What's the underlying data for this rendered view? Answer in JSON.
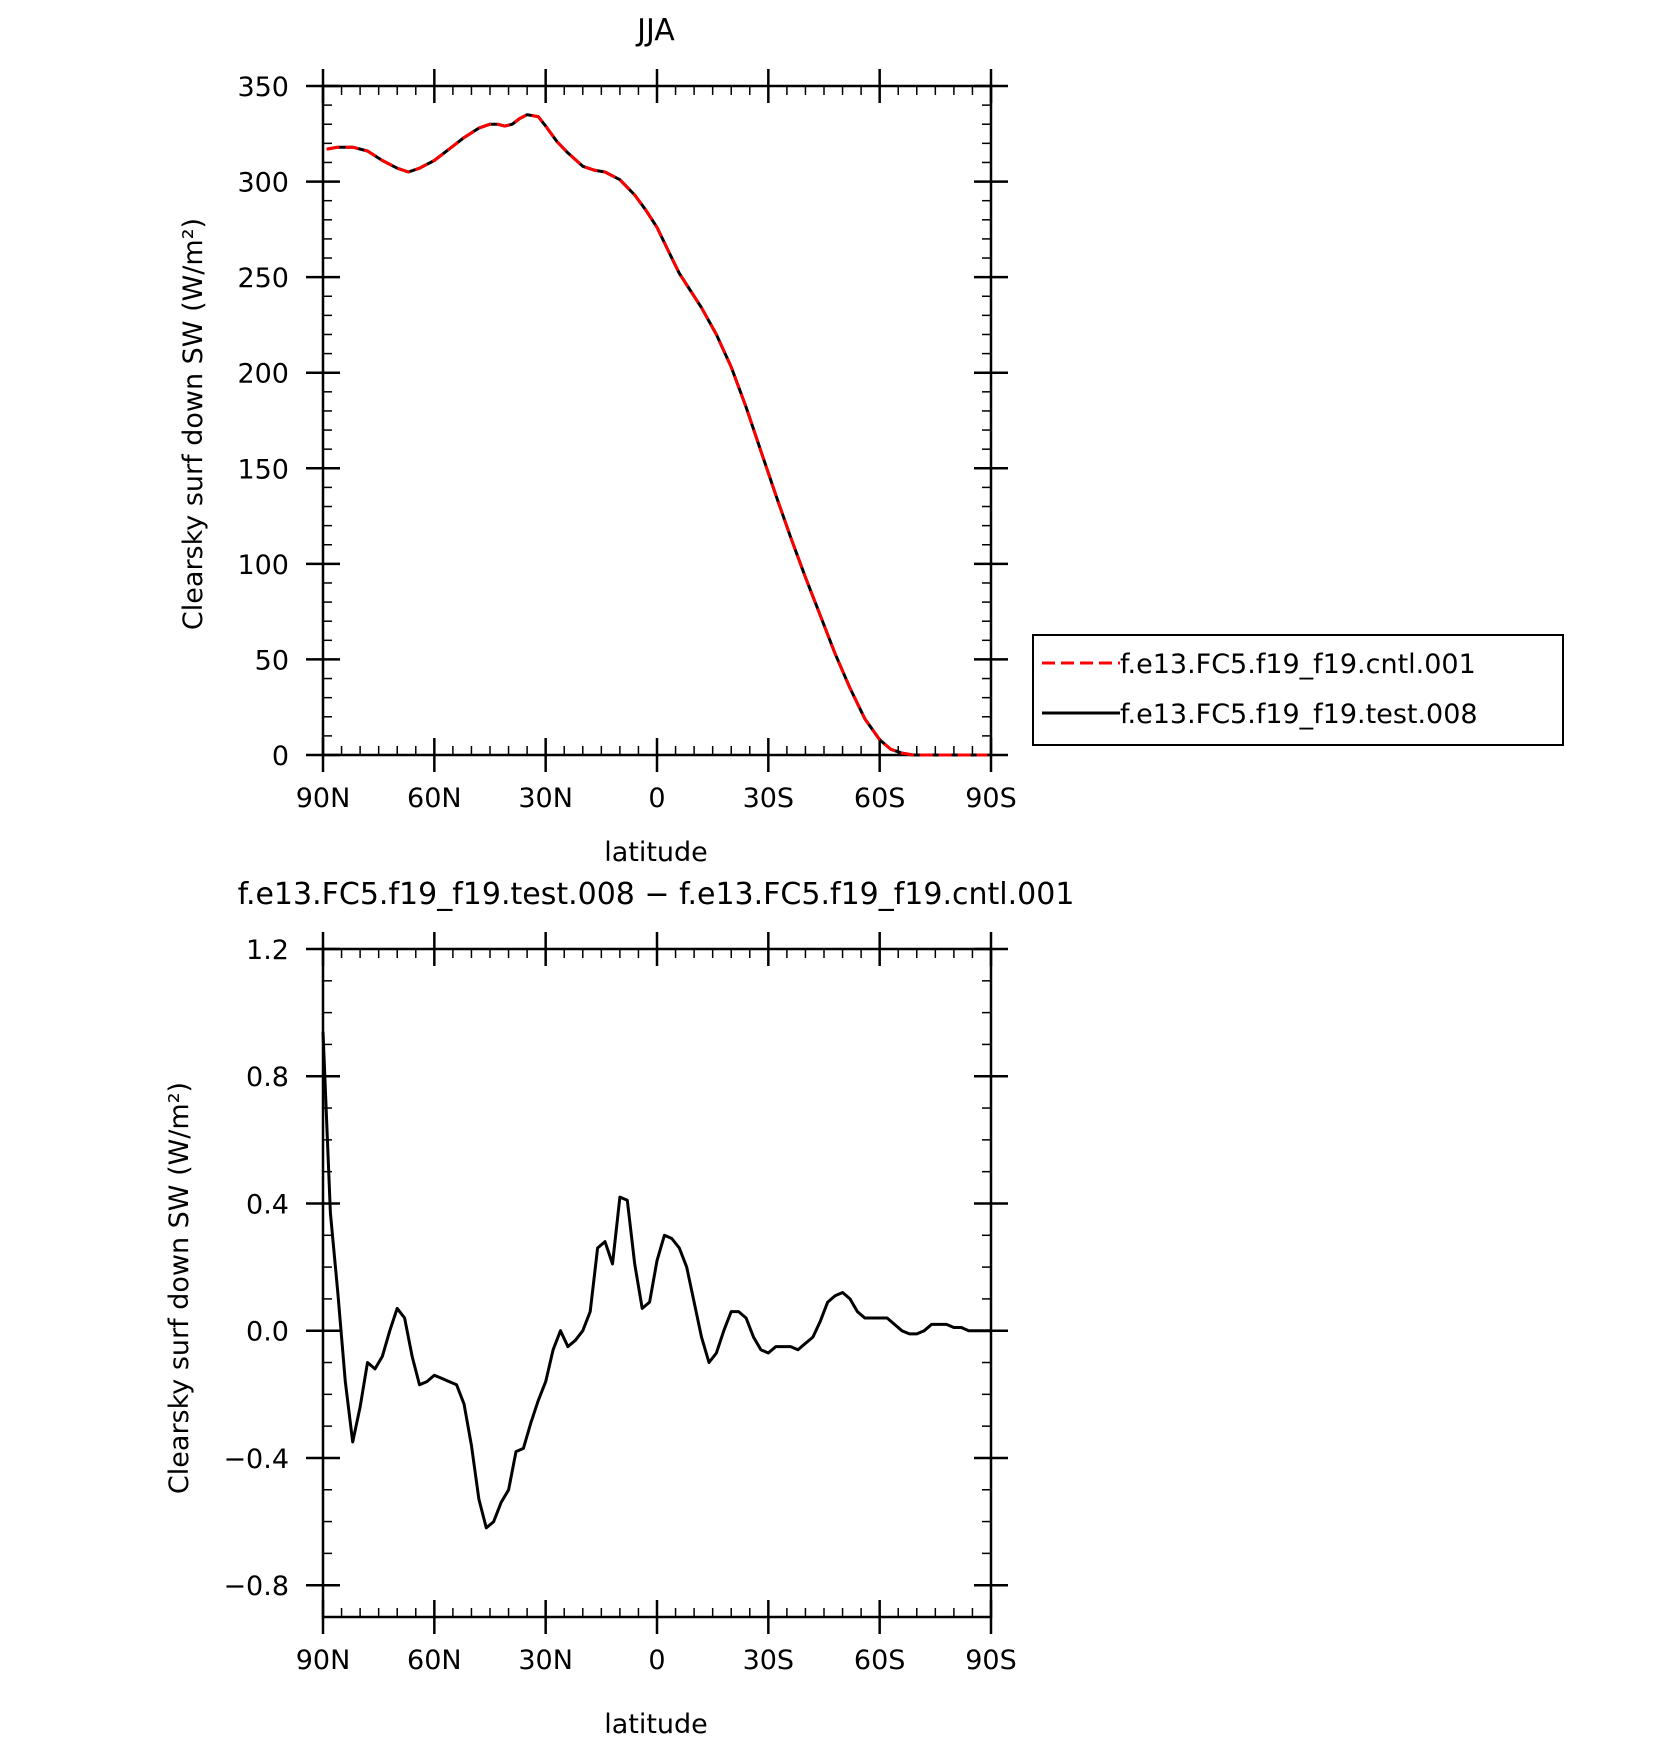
{
  "chart_data": [
    {
      "type": "line",
      "title": "JJA",
      "xlabel": "latitude",
      "ylabel": "Clearsky surf down SW (W/m²)",
      "xlim": [
        90,
        -90
      ],
      "ylim": [
        0,
        350
      ],
      "x_ticks": [
        90,
        60,
        30,
        0,
        -30,
        -60,
        -90
      ],
      "x_tick_labels": [
        "90N",
        "60N",
        "30N",
        "0",
        "30S",
        "60S",
        "90S"
      ],
      "y_ticks": [
        0,
        50,
        100,
        150,
        200,
        250,
        300,
        350
      ],
      "y_tick_labels": [
        "0",
        "50",
        "100",
        "150",
        "200",
        "250",
        "300",
        "350"
      ],
      "grid": false,
      "legend_position": "right",
      "series": [
        {
          "name": "f.e13.FC5.f19_f19.cntl.001",
          "color": "#ff0000",
          "style": "dashed",
          "x": [
            89,
            86,
            82,
            78,
            74,
            70,
            67,
            64,
            60,
            56,
            52,
            48,
            45,
            43,
            41,
            39,
            37,
            35,
            32,
            30,
            27,
            24,
            20,
            17,
            14,
            10,
            6,
            3,
            0,
            -3,
            -6,
            -9,
            -12,
            -16,
            -20,
            -24,
            -28,
            -32,
            -36,
            -40,
            -44,
            -48,
            -52,
            -56,
            -60,
            -63,
            -66,
            -69,
            -72,
            -75,
            -78,
            -81,
            -85,
            -89
          ],
          "y": [
            317,
            318,
            318,
            316,
            311,
            307,
            305,
            307,
            311,
            317,
            323,
            328,
            330,
            330,
            329,
            330,
            333,
            335,
            334,
            329,
            321,
            315,
            308,
            306,
            305,
            301,
            293,
            285,
            276,
            264,
            252,
            243,
            234,
            220,
            203,
            182,
            159,
            136,
            114,
            93,
            73,
            53,
            35,
            19,
            8,
            3,
            1,
            0,
            0,
            0,
            0,
            0,
            0,
            0
          ]
        },
        {
          "name": "f.e13.FC5.f19_f19.test.008",
          "color": "#000000",
          "style": "solid",
          "x": [
            89,
            86,
            82,
            78,
            74,
            70,
            67,
            64,
            60,
            56,
            52,
            48,
            45,
            43,
            41,
            39,
            37,
            35,
            32,
            30,
            27,
            24,
            20,
            17,
            14,
            10,
            6,
            3,
            0,
            -3,
            -6,
            -9,
            -12,
            -16,
            -20,
            -24,
            -28,
            -32,
            -36,
            -40,
            -44,
            -48,
            -52,
            -56,
            -60,
            -63,
            -66,
            -69,
            -72,
            -75,
            -78,
            -81,
            -85,
            -89
          ],
          "y": [
            317,
            318,
            318,
            316,
            311,
            307,
            305,
            307,
            311,
            317,
            323,
            328,
            330,
            330,
            329,
            330,
            333,
            335,
            334,
            329,
            321,
            315,
            308,
            306,
            305,
            301,
            293,
            285,
            276,
            264,
            252,
            243,
            234,
            220,
            203,
            182,
            159,
            136,
            114,
            93,
            73,
            53,
            35,
            19,
            8,
            3,
            1,
            0,
            0,
            0,
            0,
            0,
            0,
            0
          ]
        }
      ]
    },
    {
      "type": "line",
      "title": "f.e13.FC5.f19_f19.test.008 − f.e13.FC5.f19_f19.cntl.001",
      "xlabel": "latitude",
      "ylabel": "Clearsky surf down SW (W/m²)",
      "xlim": [
        90,
        -90
      ],
      "ylim": [
        -0.9,
        1.2
      ],
      "x_ticks": [
        90,
        60,
        30,
        0,
        -30,
        -60,
        -90
      ],
      "x_tick_labels": [
        "90N",
        "60N",
        "30N",
        "0",
        "30S",
        "60S",
        "90S"
      ],
      "y_ticks": [
        1.2,
        0.8,
        0.4,
        0.0,
        -0.4,
        -0.8
      ],
      "y_tick_labels": [
        "1.2",
        "0.8",
        "0.4",
        "0.0",
        "−0.4",
        "−0.8"
      ],
      "grid": false,
      "series": [
        {
          "name": "",
          "color": "#000000",
          "style": "solid",
          "x": [
            90,
            88,
            86,
            84,
            82,
            80,
            78,
            76,
            74,
            72,
            70,
            68,
            66,
            64,
            62,
            60,
            58,
            56,
            54,
            52,
            50,
            48,
            46,
            44,
            42,
            40,
            38,
            36,
            34,
            32,
            30,
            28,
            26,
            24,
            22,
            20,
            18,
            16,
            14,
            12,
            10,
            8,
            6,
            4,
            2,
            0,
            -2,
            -4,
            -6,
            -8,
            -10,
            -12,
            -14,
            -16,
            -18,
            -20,
            -22,
            -24,
            -26,
            -28,
            -30,
            -32,
            -34,
            -36,
            -38,
            -40,
            -42,
            -44,
            -46,
            -48,
            -50,
            -52,
            -54,
            -56,
            -58,
            -60,
            -62,
            -64,
            -66,
            -68,
            -70,
            -72,
            -74,
            -76,
            -78,
            -80,
            -82,
            -84,
            -86,
            -88,
            -90
          ],
          "y": [
            0.94,
            0.37,
            0.12,
            -0.16,
            -0.35,
            -0.24,
            -0.1,
            -0.12,
            -0.08,
            0.0,
            0.07,
            0.04,
            -0.08,
            -0.17,
            -0.16,
            -0.14,
            -0.15,
            -0.16,
            -0.17,
            -0.23,
            -0.36,
            -0.53,
            -0.62,
            -0.6,
            -0.54,
            -0.5,
            -0.38,
            -0.37,
            -0.29,
            -0.22,
            -0.16,
            -0.06,
            0.0,
            -0.05,
            -0.03,
            0.0,
            0.06,
            0.26,
            0.28,
            0.21,
            0.42,
            0.41,
            0.21,
            0.07,
            0.09,
            0.22,
            0.3,
            0.29,
            0.26,
            0.2,
            0.09,
            -0.02,
            -0.1,
            -0.07,
            0.0,
            0.06,
            0.06,
            0.04,
            -0.02,
            -0.06,
            -0.07,
            -0.05,
            -0.05,
            -0.05,
            -0.06,
            -0.04,
            -0.02,
            0.03,
            0.09,
            0.11,
            0.12,
            0.1,
            0.06,
            0.04,
            0.04,
            0.04,
            0.04,
            0.02,
            0.0,
            -0.01,
            -0.01,
            0.0,
            0.02,
            0.02,
            0.02,
            0.01,
            0.01,
            0.0,
            0.0,
            0.0,
            0.0
          ]
        }
      ]
    }
  ]
}
